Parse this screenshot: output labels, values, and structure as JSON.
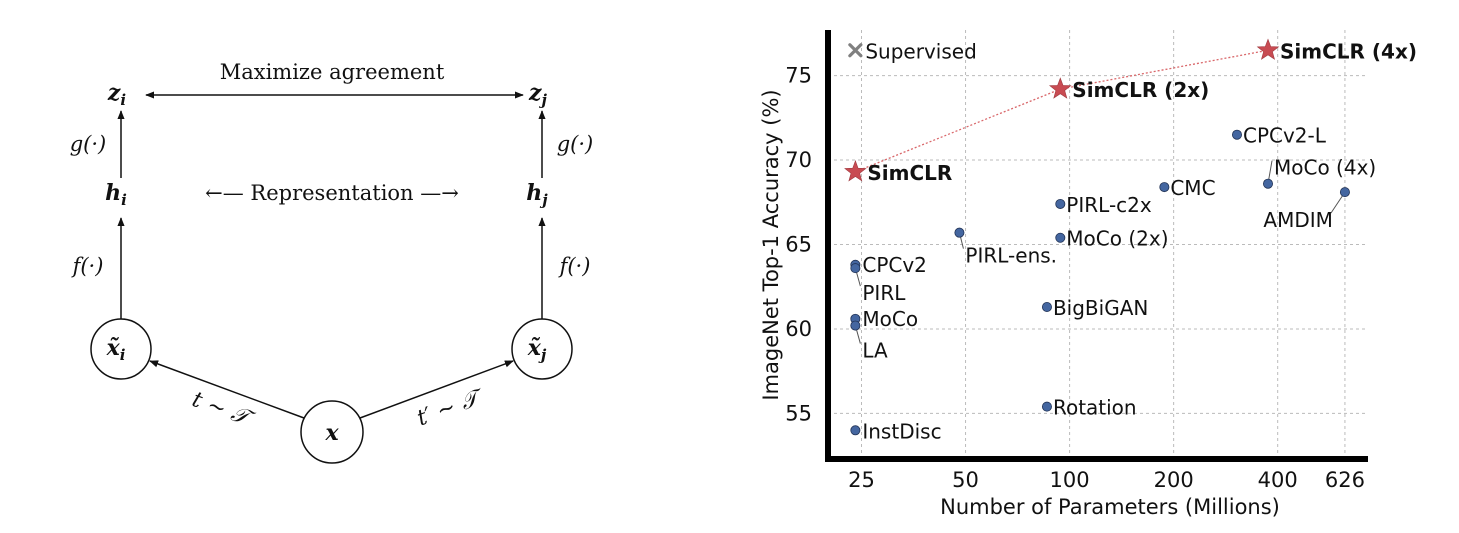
{
  "diagram": {
    "nodes": {
      "x": "x",
      "xi": "x̃",
      "xi_sub": "i",
      "xj": "x̃",
      "xj_sub": "j",
      "hi": "h",
      "hi_sub": "i",
      "hj": "h",
      "hj_sub": "j",
      "zi": "z",
      "zi_sub": "i",
      "zj": "z",
      "zj_sub": "j"
    },
    "labels": {
      "maximize": "Maximize agreement",
      "representation": "←— Representation —→",
      "g_left": "g(·)",
      "g_right": "g(·)",
      "f_left": "f(·)",
      "f_right": "f(·)",
      "t_left": "t ∼ 𝒯",
      "t_right": "t′ ∼ 𝒯"
    }
  },
  "chart_data": {
    "type": "scatter",
    "xlabel": "Number of Parameters (Millions)",
    "ylabel": "ImageNet Top-1 Accuracy (%)",
    "xscale": "log",
    "xticks": [
      25,
      50,
      100,
      200,
      400,
      626
    ],
    "xtick_labels": [
      "25",
      "50",
      "100",
      "200",
      "400",
      "626"
    ],
    "yticks": [
      55,
      60,
      65,
      70,
      75
    ],
    "ytick_labels": [
      "55",
      "60",
      "65",
      "70",
      "75"
    ],
    "xlim": [
      20,
      730
    ],
    "ylim": [
      52.3,
      77.7
    ],
    "grid": true,
    "legend": {
      "label": "Supervised",
      "marker": "x",
      "position": "top-left"
    },
    "colors": {
      "point": "#4466a0",
      "star": "#c84b52",
      "legend_x": "#808080",
      "grid": "#bbbbbb"
    },
    "points": [
      {
        "name": "CPCv2",
        "x": 24,
        "y": 63.8
      },
      {
        "name": "PIRL",
        "x": 24,
        "y": 63.6
      },
      {
        "name": "MoCo",
        "x": 24,
        "y": 60.6
      },
      {
        "name": "LA",
        "x": 24,
        "y": 60.2
      },
      {
        "name": "InstDisc",
        "x": 24,
        "y": 54.0
      },
      {
        "name": "PIRL-ens.",
        "x": 48,
        "y": 65.7
      },
      {
        "name": "PIRL-c2x",
        "x": 94,
        "y": 67.4
      },
      {
        "name": "MoCo (2x)",
        "x": 94,
        "y": 65.4
      },
      {
        "name": "BigBiGAN",
        "x": 86,
        "y": 61.3
      },
      {
        "name": "Rotation",
        "x": 86,
        "y": 55.4
      },
      {
        "name": "CMC",
        "x": 188,
        "y": 68.4
      },
      {
        "name": "CPCv2-L",
        "x": 305,
        "y": 71.5
      },
      {
        "name": "MoCo (4x)",
        "x": 375,
        "y": 68.6
      },
      {
        "name": "AMDIM",
        "x": 626,
        "y": 68.1
      }
    ],
    "simclr": [
      {
        "name": "SimCLR",
        "x": 24,
        "y": 69.3
      },
      {
        "name": "SimCLR (2x)",
        "x": 94,
        "y": 74.2
      },
      {
        "name": "SimCLR (4x)",
        "x": 375,
        "y": 76.5
      }
    ],
    "supervised": [
      {
        "x": 24,
        "y": 76.5
      }
    ]
  }
}
